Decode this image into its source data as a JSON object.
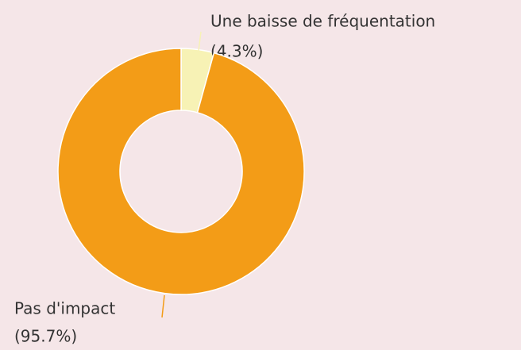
{
  "chart_data": {
    "type": "pie",
    "categories": [
      "Une baisse de fréquentation",
      "Pas d'impact"
    ],
    "values": [
      4.3,
      95.7
    ],
    "value_labels": [
      "(4.3%)",
      "(95.7%)"
    ],
    "colors": [
      "#f7f2b5",
      "#f39c17"
    ]
  }
}
